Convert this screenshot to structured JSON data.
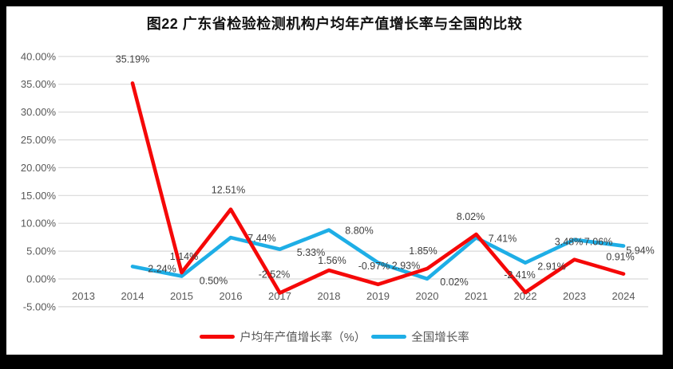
{
  "chart_data": {
    "type": "line",
    "title": "图22  广东省检验检测机构户均年产值增长率与全国的比较",
    "x_categories": [
      "2013",
      "2014",
      "2015",
      "2016",
      "2017",
      "2018",
      "2019",
      "2020",
      "2021",
      "2022",
      "2023",
      "2024"
    ],
    "series": [
      {
        "name": "户均年产值增长率（%）",
        "color": "#F50808",
        "values": [
          null,
          35.19,
          1.14,
          12.51,
          -2.52,
          1.56,
          -0.97,
          1.85,
          8.02,
          -2.41,
          3.48,
          0.91
        ],
        "labels": [
          null,
          "35.19%",
          "1.14%",
          "12.51%",
          "-2.52%",
          "1.56%",
          "-0.97%",
          "1.85%",
          "8.02%",
          "-2.41%",
          "3.48%",
          "0.91%"
        ],
        "label_position": "above"
      },
      {
        "name": "全国增长率",
        "color": "#1EAEE6",
        "values": [
          null,
          2.24,
          0.5,
          7.44,
          5.33,
          8.8,
          2.93,
          0.02,
          7.41,
          2.91,
          7.06,
          5.94
        ],
        "labels": [
          null,
          "2.24%",
          "0.50%",
          "7.44%",
          "5.33%",
          "8.80%",
          "2.93%",
          "0.02%",
          "7.41%",
          "2.91%",
          "7.06%",
          "5.94%"
        ],
        "label_position": "right"
      }
    ],
    "y_axis": {
      "min": -5,
      "max": 40,
      "step": 5,
      "tick_values": [
        40,
        35,
        30,
        25,
        20,
        15,
        10,
        5,
        0,
        -5
      ],
      "tick_labels": [
        "40.00%",
        "35.00%",
        "30.00%",
        "25.00%",
        "20.00%",
        "15.00%",
        "10.00%",
        "5.00%",
        "0.00%",
        "-5.00%"
      ]
    },
    "grid": "horizontal",
    "grid_color": "#D9D9D9",
    "legend_position": "bottom",
    "axis_label_color": "#595959",
    "data_label_color": "#3f3f3f"
  }
}
